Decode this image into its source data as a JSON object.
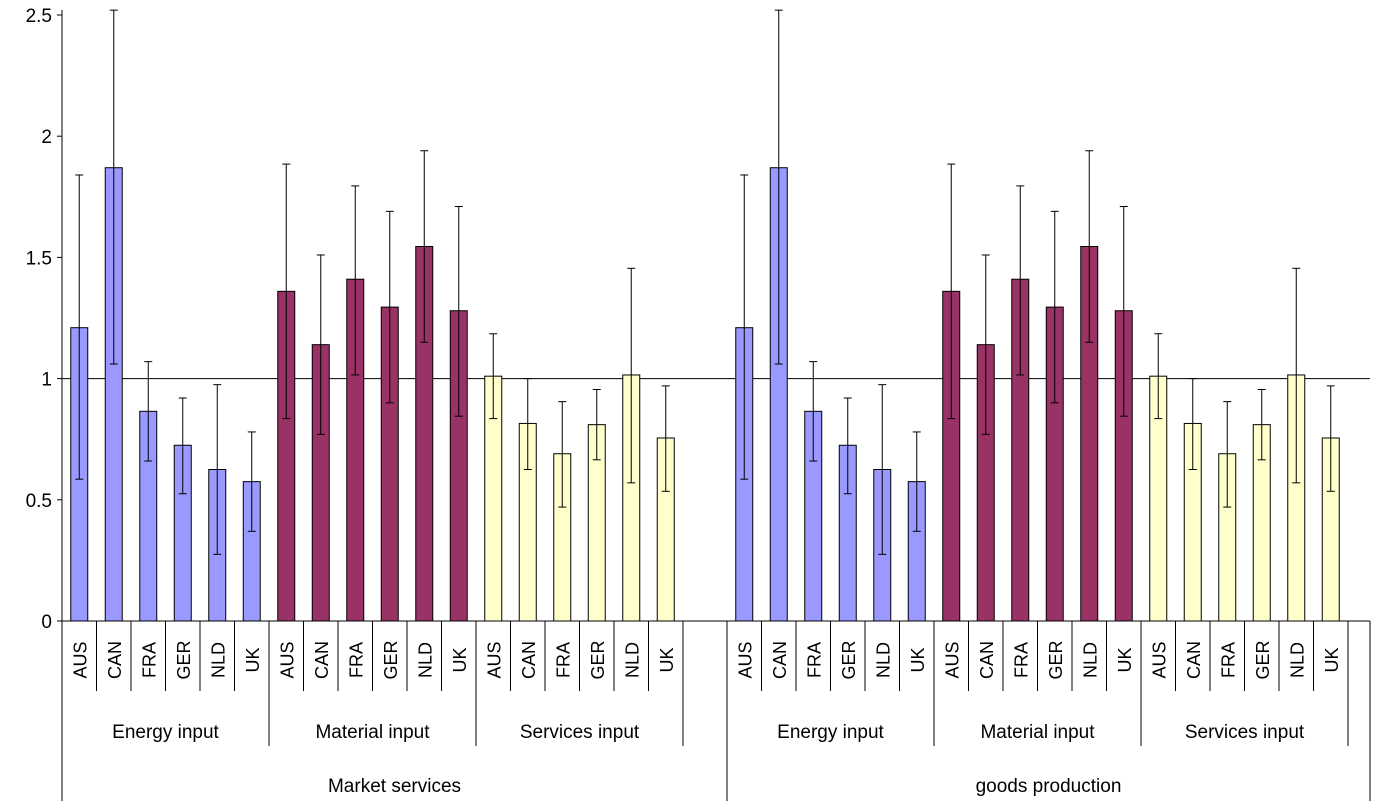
{
  "chart_data": {
    "type": "bar",
    "title": "",
    "xlabel": "",
    "ylabel": "",
    "ylim": [
      0,
      2.5
    ],
    "yticks": [
      "0",
      "0.5",
      "1",
      "1.5",
      "2",
      "2.5"
    ],
    "reference_line": 1,
    "error_bars": true,
    "colors": {
      "Energy input": "#9999ff",
      "Material input": "#993366",
      "Services input": "#ffffcc"
    },
    "groups": [
      {
        "label": "Market services",
        "subgroups": [
          {
            "label": "Energy input",
            "categories": [
              "AUS",
              "CAN",
              "FRA",
              "GER",
              "NLD",
              "UK"
            ],
            "values": [
              1.21,
              1.87,
              0.865,
              0.725,
              0.625,
              0.575
            ],
            "err_low": [
              0.585,
              1.06,
              0.66,
              0.525,
              0.275,
              0.37
            ],
            "err_high": [
              1.84,
              2.52,
              1.07,
              0.92,
              0.975,
              0.78
            ]
          },
          {
            "label": "Material input",
            "categories": [
              "AUS",
              "CAN",
              "FRA",
              "GER",
              "NLD",
              "UK"
            ],
            "values": [
              1.36,
              1.14,
              1.41,
              1.295,
              1.545,
              1.28
            ],
            "err_low": [
              0.835,
              0.77,
              1.015,
              0.9,
              1.15,
              0.845
            ],
            "err_high": [
              1.885,
              1.51,
              1.795,
              1.69,
              1.94,
              1.71
            ]
          },
          {
            "label": "Services input",
            "categories": [
              "AUS",
              "CAN",
              "FRA",
              "GER",
              "NLD",
              "UK"
            ],
            "values": [
              1.01,
              0.815,
              0.69,
              0.81,
              1.015,
              0.755
            ],
            "err_low": [
              0.835,
              0.625,
              0.47,
              0.665,
              0.57,
              0.535
            ],
            "err_high": [
              1.185,
              1.0,
              0.905,
              0.955,
              1.455,
              0.97
            ]
          }
        ]
      },
      {
        "label": "goods production",
        "subgroups": [
          {
            "label": "Energy input",
            "categories": [
              "AUS",
              "CAN",
              "FRA",
              "GER",
              "NLD",
              "UK"
            ],
            "values": [
              1.21,
              1.87,
              0.865,
              0.725,
              0.625,
              0.575
            ],
            "err_low": [
              0.585,
              1.06,
              0.66,
              0.525,
              0.275,
              0.37
            ],
            "err_high": [
              1.84,
              2.52,
              1.07,
              0.92,
              0.975,
              0.78
            ]
          },
          {
            "label": "Material input",
            "categories": [
              "AUS",
              "CAN",
              "FRA",
              "GER",
              "NLD",
              "UK"
            ],
            "values": [
              1.36,
              1.14,
              1.41,
              1.295,
              1.545,
              1.28
            ],
            "err_low": [
              0.835,
              0.77,
              1.015,
              0.9,
              1.15,
              0.845
            ],
            "err_high": [
              1.885,
              1.51,
              1.795,
              1.69,
              1.94,
              1.71
            ]
          },
          {
            "label": "Services input",
            "categories": [
              "AUS",
              "CAN",
              "FRA",
              "GER",
              "NLD",
              "UK"
            ],
            "values": [
              1.01,
              0.815,
              0.69,
              0.81,
              1.015,
              0.755
            ],
            "err_low": [
              0.835,
              0.625,
              0.47,
              0.665,
              0.57,
              0.535
            ],
            "err_high": [
              1.185,
              1.0,
              0.905,
              0.955,
              1.455,
              0.97
            ]
          }
        ]
      }
    ]
  }
}
